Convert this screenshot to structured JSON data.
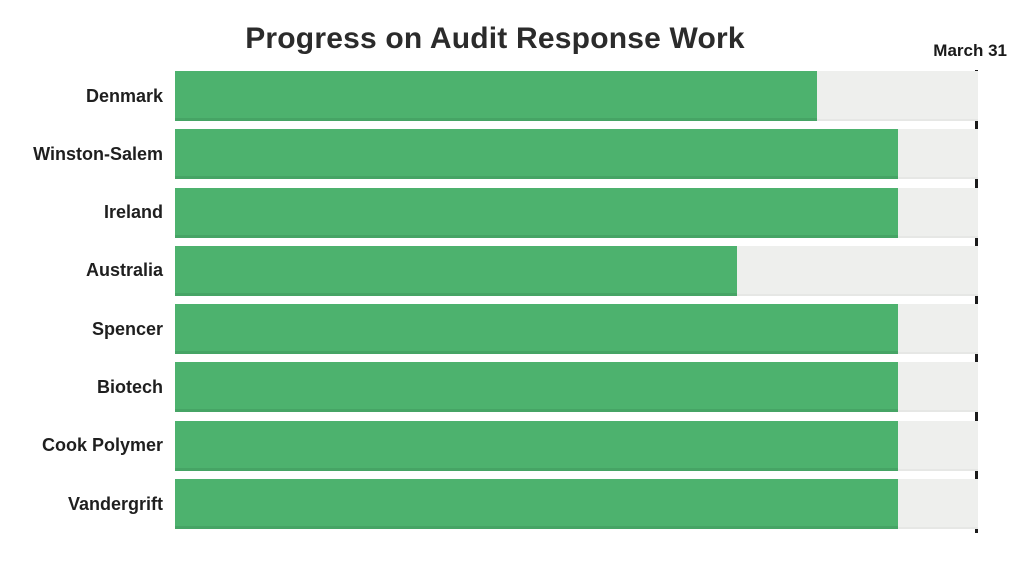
{
  "title": "Progress on Audit Response Work",
  "deadline_label": "March 31",
  "colors": {
    "bar": "#4DB26E",
    "track": "#EEEFED",
    "deadline_line": "#1C1C1C",
    "title_text": "#2B2B2B",
    "label_text": "#1F1F1F"
  },
  "chart_data": {
    "type": "bar",
    "orientation": "horizontal",
    "title": "Progress on Audit Response Work",
    "categories": [
      "Denmark",
      "Winston-Salem",
      "Ireland",
      "Australia",
      "Spencer",
      "Biotech",
      "Cook Polymer",
      "Vandergrift"
    ],
    "values": [
      80,
      90,
      90,
      70,
      90,
      90,
      90,
      90
    ],
    "unit": "%",
    "xlim": [
      0,
      100
    ],
    "xlabel": "",
    "ylabel": "",
    "grid": false,
    "legend": false,
    "annotations": [
      {
        "type": "vertical-line",
        "value": 100,
        "label": "March 31"
      }
    ]
  }
}
